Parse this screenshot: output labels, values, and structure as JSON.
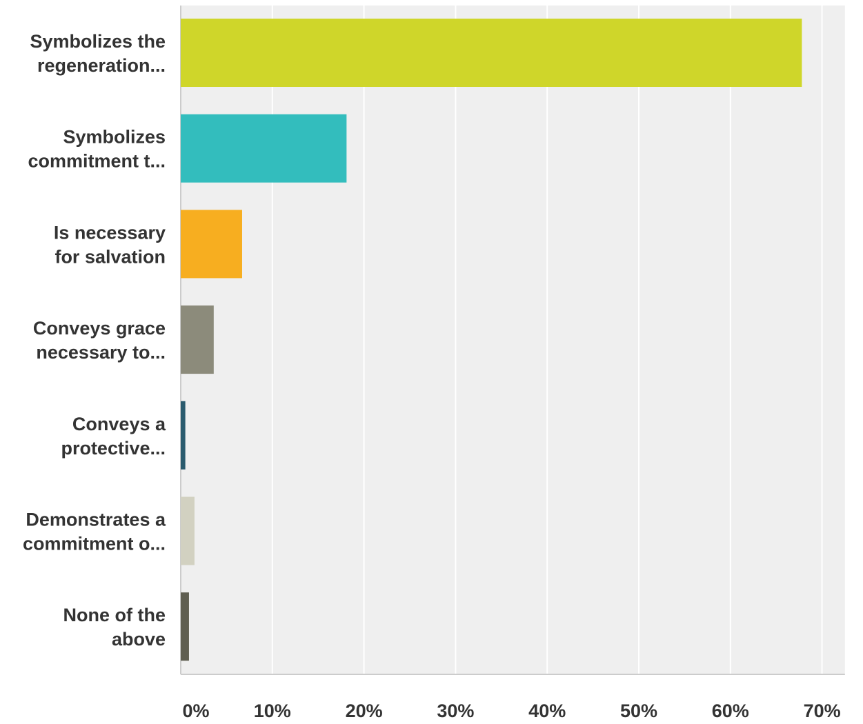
{
  "chart_data": {
    "type": "bar",
    "orientation": "horizontal",
    "categories": [
      [
        "Symbolizes the",
        "regeneration..."
      ],
      [
        "Symbolizes",
        "commitment t..."
      ],
      [
        "Is necessary",
        "for salvation"
      ],
      [
        "Conveys grace",
        "necessary to..."
      ],
      [
        "Conveys a",
        "protective..."
      ],
      [
        "Demonstrates a",
        "commitment o..."
      ],
      [
        "None of the",
        "above"
      ]
    ],
    "values": [
      67.8,
      18.1,
      6.7,
      3.6,
      0.5,
      1.5,
      0.9
    ],
    "colors": [
      "#cfd62a",
      "#33bdbd",
      "#f7ae20",
      "#8c8b7b",
      "#2a5b6e",
      "#d2d1c1",
      "#5f5e51"
    ],
    "xlim": [
      0,
      72.5
    ],
    "ticks": [
      0,
      10,
      20,
      30,
      40,
      50,
      60,
      70
    ],
    "tick_labels": [
      "0%",
      "10%",
      "20%",
      "30%",
      "40%",
      "50%",
      "60%",
      "70%"
    ],
    "title": "",
    "xlabel": "",
    "ylabel": "",
    "grid": true,
    "legend": "none",
    "plot_background": "#efefef",
    "grid_color": "#ffffff",
    "axis_color": "#cccccc",
    "label_color": "#333333"
  }
}
